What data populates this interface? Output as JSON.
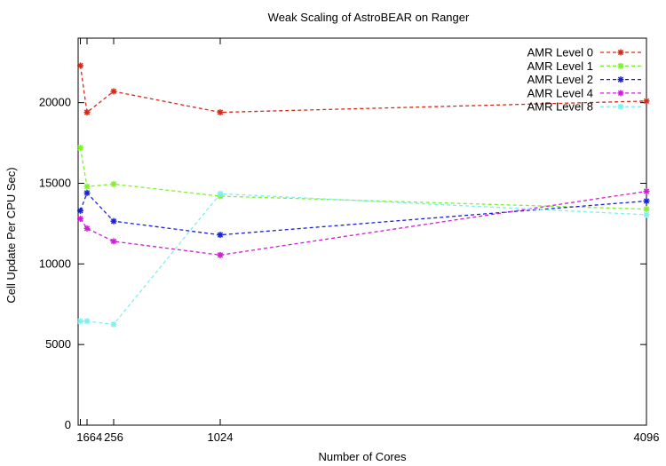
{
  "chart_data": {
    "type": "line",
    "title": "Weak Scaling of AstroBEAR on Ranger",
    "xlabel": "Number of Cores",
    "ylabel": "Cell Update Per CPU Sec)",
    "xlim": [
      0,
      4096
    ],
    "ylim": [
      0,
      24000
    ],
    "xticks": [
      16,
      64,
      256,
      1024,
      4096
    ],
    "xtick_labels": [
      "16",
      "64",
      "256",
      "1024",
      "4096"
    ],
    "yticks": [
      0,
      5000,
      10000,
      15000,
      20000
    ],
    "yticks_labels": [
      "0",
      "5000",
      "10000",
      "15000",
      "20000"
    ],
    "grid": false,
    "legend_position": "top-right",
    "series": [
      {
        "name": "AMR Level 0",
        "color": "#d42a1a",
        "x": [
          16,
          64,
          256,
          1024,
          4096
        ],
        "values": [
          22300,
          19400,
          20700,
          19400,
          20100
        ]
      },
      {
        "name": "AMR Level 1",
        "color": "#7cf32a",
        "x": [
          16,
          64,
          256,
          1024,
          4096
        ],
        "values": [
          17200,
          14800,
          14950,
          14200,
          13400
        ]
      },
      {
        "name": "AMR Level 2",
        "color": "#1a20d8",
        "x": [
          16,
          64,
          256,
          1024,
          4096
        ],
        "values": [
          13300,
          14400,
          12650,
          11800,
          13900
        ]
      },
      {
        "name": "AMR Level 4",
        "color": "#d21ad8",
        "x": [
          16,
          64,
          256,
          1024,
          4096
        ],
        "values": [
          12800,
          12200,
          11400,
          10550,
          14500
        ]
      },
      {
        "name": "AMR Level 8",
        "color": "#7df0ef",
        "x": [
          16,
          64,
          256,
          1024,
          4096
        ],
        "values": [
          6450,
          6450,
          6250,
          14350,
          13050
        ]
      }
    ]
  }
}
